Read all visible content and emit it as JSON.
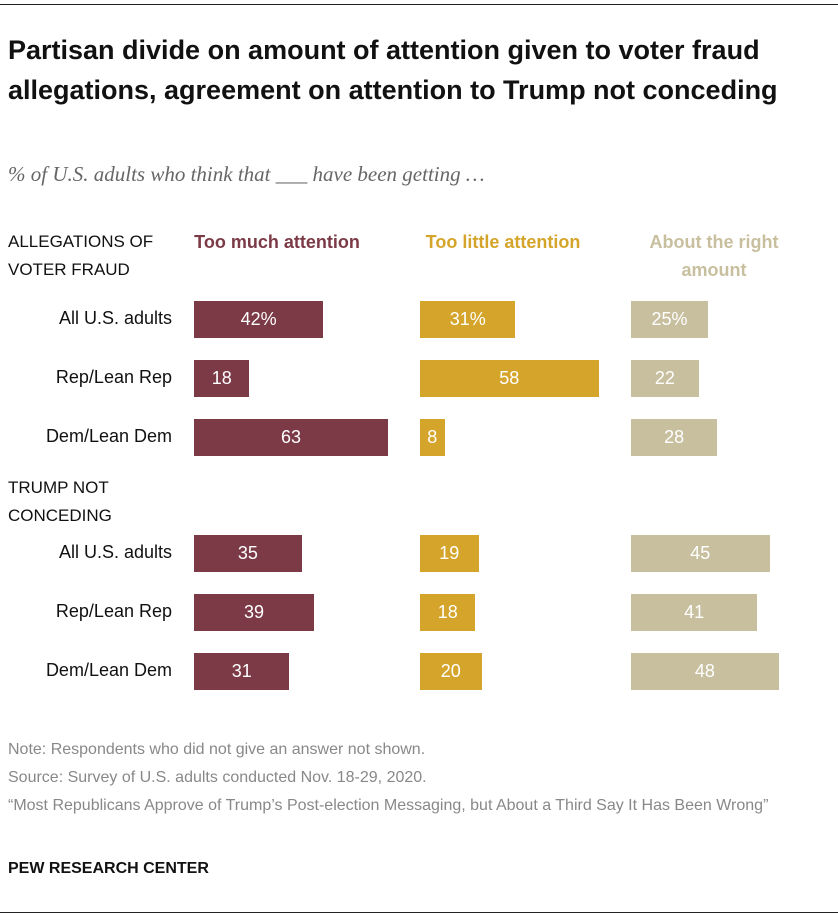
{
  "chart_data": {
    "type": "bar",
    "title": "Partisan divide on amount of attention given to voter fraud allegations, agreement on attention to Trump not conceding",
    "subtitle": "% of U.S. adults who think that ___ have been getting …",
    "groups": [
      {
        "label": "ALLEGATIONS OF VOTER FRAUD",
        "categories": [
          "All U.S. adults",
          "Rep/Lean Rep",
          "Dem/Lean Dem"
        ]
      },
      {
        "label": "TRUMP NOT CONCEDING",
        "categories": [
          "All U.S. adults",
          "Rep/Lean Rep",
          "Dem/Lean Dem"
        ]
      }
    ],
    "series": [
      {
        "name": "Too much attention",
        "color": "#7b3a46",
        "values": [
          42,
          18,
          63,
          35,
          39,
          31
        ],
        "value_labels": [
          "42%",
          "18",
          "63",
          "35",
          "39",
          "31"
        ]
      },
      {
        "name": "Too little attention",
        "color": "#d5a52b",
        "values": [
          31,
          58,
          8,
          19,
          18,
          20
        ],
        "value_labels": [
          "31%",
          "58",
          "8",
          "19",
          "18",
          "20"
        ]
      },
      {
        "name": "About the right amount",
        "color": "#c8bf9f",
        "values": [
          25,
          22,
          28,
          45,
          41,
          48
        ],
        "value_labels": [
          "25%",
          "22",
          "28",
          "45",
          "41",
          "48"
        ]
      }
    ],
    "note": "Note: Respondents who did not give an answer not shown.",
    "source": "Source: Survey of U.S. adults conducted Nov. 18-29, 2020.",
    "report": "“Most Republicans Approve of Trump’s Post-election Messaging, but About a Third Say It Has Been Wrong”",
    "credit": "PEW RESEARCH CENTER"
  }
}
